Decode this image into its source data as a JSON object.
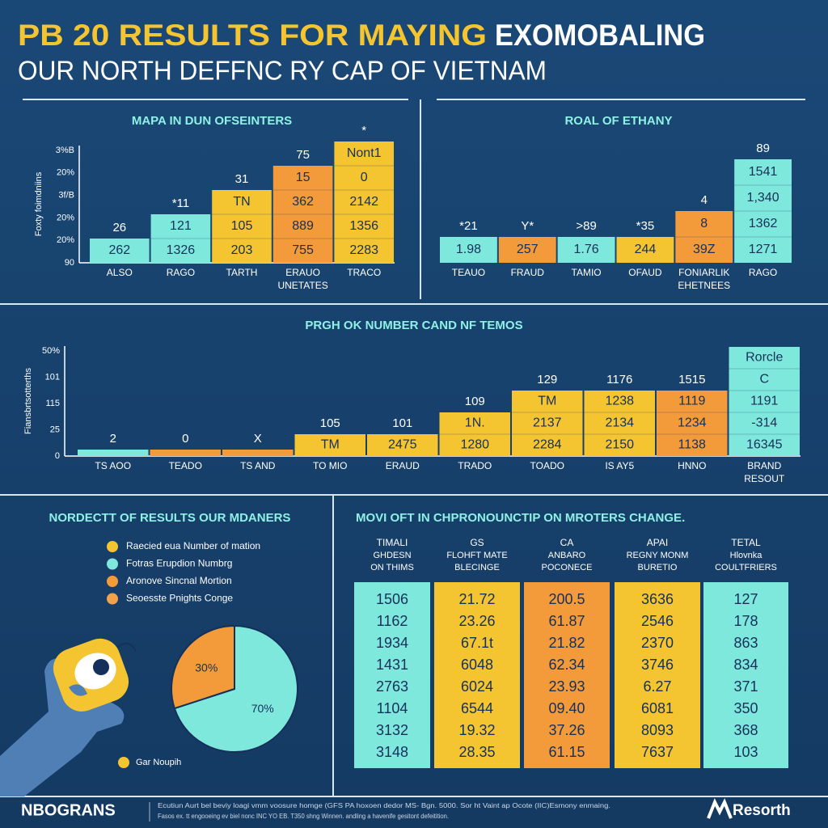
{
  "header": {
    "title_highlight": "PB 20 RESULTS FOR MAYING",
    "title_rest": "EXOMOBALING",
    "subtitle": "OUR NORTH DEFFNC RY CAP OF VIETNAM"
  },
  "panels": [
    {
      "title": "MAPA IN DUN OFSEINTERS",
      "axis_title": "Foxty foimdniins",
      "axis_labels": [
        "3%B",
        "20%",
        "3f/B",
        "20%",
        "20%",
        "90"
      ],
      "columns": [
        {
          "label": [
            "ALSO"
          ],
          "top": "26",
          "color": "#7fe8dc",
          "cells": [
            "262"
          ]
        },
        {
          "label": [
            "RAGO"
          ],
          "top": "*11",
          "color": "#7fe8dc",
          "cells": [
            "121",
            "1326"
          ]
        },
        {
          "label": [
            "TARTH"
          ],
          "top": "31",
          "color": "#f5c531",
          "cells": [
            "TN",
            "105",
            "203"
          ]
        },
        {
          "label": [
            "ERAUO",
            "UNETATES"
          ],
          "top": "75",
          "color": "#f39a3a",
          "cells": [
            "15",
            "362",
            "889",
            "755"
          ]
        },
        {
          "label": [
            "TRACO"
          ],
          "top": "*",
          "color": "#f5c531",
          "cells": [
            "Nont1",
            "0",
            "2142",
            "1356",
            "2283"
          ]
        }
      ]
    },
    {
      "title": "ROAL OF ETHANY",
      "columns": [
        {
          "label": [
            "TEAUO"
          ],
          "top": "*21",
          "color": "#7fe8dc",
          "cells": [
            "1.98"
          ]
        },
        {
          "label": [
            "FRAUD"
          ],
          "top": "Y*",
          "color": "#f39a3a",
          "cells": [
            "257"
          ]
        },
        {
          "label": [
            "TAMIO"
          ],
          "top": ">89",
          "color": "#7fe8dc",
          "cells": [
            "1.76"
          ]
        },
        {
          "label": [
            "OFAUD"
          ],
          "top": "*35",
          "color": "#f5c531",
          "cells": [
            "244"
          ]
        },
        {
          "label": [
            "FONIARLIK",
            "EHETNEES"
          ],
          "top": "4",
          "color": "#f39a3a",
          "cells": [
            "8",
            "39Z"
          ]
        },
        {
          "label": [
            "RAGO"
          ],
          "top": "89",
          "color": "#7fe8dc",
          "cells": [
            "1541",
            "1,340",
            "1362",
            "1271"
          ]
        }
      ]
    },
    {
      "title": "PRGH OK NUMBER CAND NF TEMOS",
      "axis_title": "Fiansbrtsotterths",
      "axis_labels": [
        "50%",
        "101",
        "115",
        "25",
        "0"
      ],
      "columns": [
        {
          "label": [
            "TS AOO"
          ],
          "top": "2",
          "color": "#7fe8dc",
          "cells": []
        },
        {
          "label": [
            "TEADO"
          ],
          "top": "0",
          "color": "#f39a3a",
          "cells": []
        },
        {
          "label": [
            "TS AND"
          ],
          "top": "X",
          "color": "#f39a3a",
          "cells": []
        },
        {
          "label": [
            "TO MIO"
          ],
          "top": "105",
          "color": "#f5c531",
          "cells": [
            "TM"
          ]
        },
        {
          "label": [
            "ERAUD"
          ],
          "top": "101",
          "color": "#f5c531",
          "cells": [
            "2475"
          ]
        },
        {
          "label": [
            "TRADO"
          ],
          "top": "109",
          "color": "#f5c531",
          "cells": [
            "1N.",
            "1280"
          ]
        },
        {
          "label": [
            "TOADO"
          ],
          "top": "129",
          "color": "#f5c531",
          "cells": [
            "TM",
            "2137",
            "2284"
          ]
        },
        {
          "label": [
            "IS AY5"
          ],
          "top": "1176",
          "color": "#f5c531",
          "cells": [
            "1238",
            "2134",
            "2150"
          ]
        },
        {
          "label": [
            "HNNO"
          ],
          "top": "1515",
          "color": "#f39a3a",
          "cells": [
            "1119",
            "1234",
            "1138"
          ]
        },
        {
          "label": [
            "BRAND",
            "RESOUT"
          ],
          "top": null,
          "color": "#7fe8dc",
          "cells": [
            "Rorcle",
            "C",
            "1191",
            "-314",
            "16345"
          ]
        }
      ]
    }
  ],
  "legend": {
    "title": "NORDECTT OF RESULTS OUR MDANERS",
    "items": [
      {
        "name": "Raecied eua Number of mation",
        "color": "#f5c531"
      },
      {
        "name": "Fotras Erupdion Numbrg",
        "color": "#7fe8dc"
      },
      {
        "name": "Aronove Sincnal Mortion",
        "color": "#f39a3a"
      },
      {
        "name": "Seoesste Pnights Conge",
        "color": "#f2a24a"
      }
    ],
    "extra": {
      "name": "Gar Noupih",
      "color": "#f5c531"
    }
  },
  "chart_data": {
    "type": "pie",
    "values": [
      30,
      70
    ],
    "value_labels": [
      "30%",
      "70%"
    ],
    "colors": [
      "#f39a3a",
      "#7fe8dc"
    ]
  },
  "table": {
    "title": "MOVI OFT IN CHPRONOUNCTIP ON MROTERS CHANGE.",
    "columns": [
      {
        "header": [
          "TIMALI",
          "GHDESN",
          "ON THIMS"
        ],
        "color": "#7fe8dc"
      },
      {
        "header": [
          "GS",
          "FLOHFT MATE",
          "BLECINGE"
        ],
        "color": "#f5c531"
      },
      {
        "header": [
          "CA",
          "ANBARO",
          "POCONECE"
        ],
        "color": "#f39a3a"
      },
      {
        "header": [
          "APAI",
          "REGNY MONM",
          "BURETIO"
        ],
        "color": "#f5c531"
      },
      {
        "header": [
          "TETAL",
          "Hlovnka",
          "COULTFRIERS"
        ],
        "color": "#7fe8dc"
      }
    ],
    "rows": [
      [
        "1506",
        "21.72",
        "200.5",
        "3636",
        "127"
      ],
      [
        "1162",
        "23.26",
        "61.87",
        "2546",
        "178"
      ],
      [
        "1934",
        "67.1t",
        "21.82",
        "2370",
        "863"
      ],
      [
        "1431",
        "6048",
        "62.34",
        "3746",
        "834"
      ],
      [
        "2763",
        "6024",
        "23.93",
        "6.27",
        "371"
      ],
      [
        "1104",
        "6544",
        "09.40",
        "6081",
        "350"
      ],
      [
        "3132",
        "19.32",
        "37.26",
        "8093",
        "368"
      ],
      [
        "3148",
        "28.35",
        "61.15",
        "7637",
        "103"
      ]
    ]
  },
  "footer": {
    "logo": "NBOGRANS",
    "lines": [
      "Ecutiun Aurt bel beviy loagi vmm voosure homge (GFS PA hoxoen dedor MS- Bgn. 5000. Sor ht Vaint ap Ocote (IIC)Esmony enmaing.",
      "Fasos ex. tt engooeing ev biel nonc INC YO EB. T350 shng Winnen. andling a havenife gesitont defeitition."
    ],
    "brand": "Resorth"
  }
}
